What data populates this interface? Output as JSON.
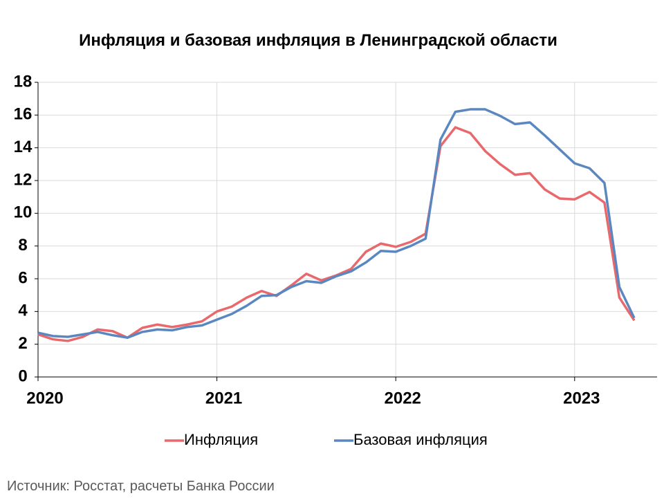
{
  "chart_data": {
    "type": "line",
    "title": "Инфляция и базовая инфляция в Ленинградской области",
    "source": "Источник: Росстат, расчеты Банка России",
    "categories": [
      "2020",
      null,
      null,
      null,
      null,
      null,
      null,
      null,
      null,
      null,
      null,
      null,
      "2021",
      null,
      null,
      null,
      null,
      null,
      null,
      null,
      null,
      null,
      null,
      null,
      "2022",
      null,
      null,
      null,
      null,
      null,
      null,
      null,
      null,
      null,
      null,
      null,
      "2023",
      null,
      null,
      null,
      null
    ],
    "series": [
      {
        "name": "Инфляция",
        "color": "#e8686c",
        "values": [
          2.6,
          2.3,
          2.2,
          2.45,
          2.9,
          2.8,
          2.4,
          3.0,
          3.2,
          3.05,
          3.2,
          3.4,
          4.0,
          4.3,
          4.85,
          5.25,
          4.95,
          5.6,
          6.3,
          5.9,
          6.2,
          6.6,
          7.65,
          8.15,
          7.95,
          8.25,
          8.75,
          14.1,
          15.25,
          14.9,
          13.8,
          13.0,
          12.35,
          12.45,
          11.45,
          10.9,
          10.85,
          11.3,
          10.65,
          4.85,
          3.45
        ]
      },
      {
        "name": "Базовая инфляция",
        "color": "#5b87c0",
        "values": [
          2.7,
          2.5,
          2.45,
          2.6,
          2.75,
          2.55,
          2.4,
          2.75,
          2.9,
          2.85,
          3.05,
          3.15,
          3.5,
          3.85,
          4.35,
          4.95,
          5.0,
          5.5,
          5.85,
          5.75,
          6.15,
          6.45,
          7.0,
          7.7,
          7.65,
          8.0,
          8.45,
          14.5,
          16.2,
          16.35,
          16.35,
          15.95,
          15.45,
          15.55,
          14.75,
          13.9,
          13.05,
          12.75,
          11.85,
          5.5,
          3.6
        ]
      }
    ],
    "ylim": [
      0,
      18
    ],
    "yticks": [
      0,
      2,
      4,
      6,
      8,
      10,
      12,
      14,
      16,
      18
    ],
    "grid": true
  }
}
